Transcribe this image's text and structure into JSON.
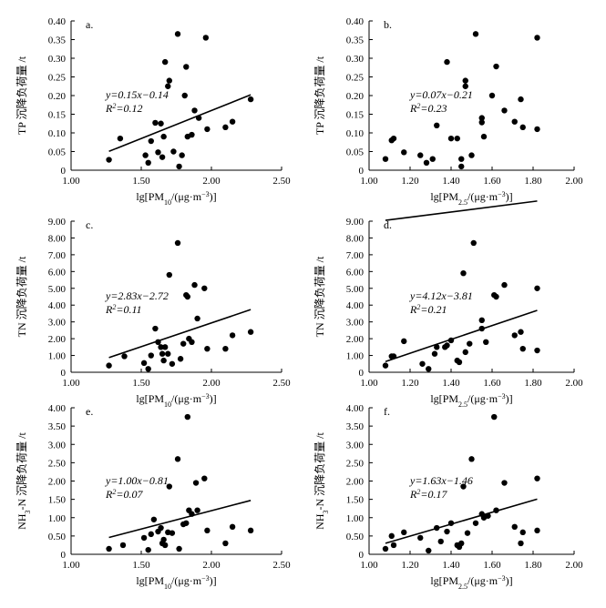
{
  "chart_data": [
    {
      "id": "a",
      "type": "scatter",
      "panel_label": "a.",
      "xlabel": "lg[PM10/(μg·m⁻³)]",
      "ylabel": "TP 沉降负荷量 /t",
      "xlim": [
        1.0,
        2.5
      ],
      "ylim": [
        0,
        0.4
      ],
      "x_ticks": [
        "1.00",
        "1.50",
        "2.00",
        "2.50"
      ],
      "y_ticks": [
        "0",
        "0.05",
        "0.10",
        "0.15",
        "0.20",
        "0.25",
        "0.30",
        "0.35",
        "0.40"
      ],
      "equation": "y=0.15x−0.14",
      "r2": "R²=0.12",
      "fit": {
        "slope": 0.15,
        "intercept": -0.14
      },
      "fit_x": [
        1.27,
        2.28
      ],
      "points": [
        [
          1.27,
          0.028
        ],
        [
          1.35,
          0.085
        ],
        [
          1.53,
          0.04
        ],
        [
          1.55,
          0.02
        ],
        [
          1.57,
          0.078
        ],
        [
          1.6,
          0.127
        ],
        [
          1.62,
          0.048
        ],
        [
          1.64,
          0.125
        ],
        [
          1.65,
          0.035
        ],
        [
          1.66,
          0.09
        ],
        [
          1.67,
          0.29
        ],
        [
          1.69,
          0.225
        ],
        [
          1.7,
          0.24
        ],
        [
          1.73,
          0.05
        ],
        [
          1.76,
          0.365
        ],
        [
          1.77,
          0.01
        ],
        [
          1.79,
          0.04
        ],
        [
          1.81,
          0.2
        ],
        [
          1.82,
          0.277
        ],
        [
          1.83,
          0.09
        ],
        [
          1.86,
          0.095
        ],
        [
          1.88,
          0.16
        ],
        [
          1.91,
          0.14
        ],
        [
          1.96,
          0.355
        ],
        [
          1.97,
          0.11
        ],
        [
          2.1,
          0.115
        ],
        [
          2.15,
          0.13
        ],
        [
          2.28,
          0.19
        ]
      ]
    },
    {
      "id": "b",
      "type": "scatter",
      "panel_label": "b.",
      "xlabel": "lg[PM2.5/(μg·m⁻³)]",
      "ylabel": "TP 沉降负荷量 /t",
      "xlim": [
        1.0,
        2.0
      ],
      "ylim": [
        0,
        0.4
      ],
      "x_ticks": [
        "1.00",
        "1.20",
        "1.40",
        "1.60",
        "1.80",
        "2.00"
      ],
      "y_ticks": [
        "0",
        "0.05",
        "0.10",
        "0.15",
        "0.20",
        "0.25",
        "0.30",
        "0.35",
        "0.40"
      ],
      "equation": "y=0.07x−0.21",
      "r2": "R²=0.23",
      "fit": {
        "slope": 0.07,
        "intercept": -0.21
      },
      "fit_x": [
        1.08,
        1.82
      ],
      "points": [
        [
          1.08,
          0.03
        ],
        [
          1.11,
          0.08
        ],
        [
          1.12,
          0.085
        ],
        [
          1.17,
          0.048
        ],
        [
          1.25,
          0.04
        ],
        [
          1.28,
          0.02
        ],
        [
          1.31,
          0.03
        ],
        [
          1.33,
          0.12
        ],
        [
          1.38,
          0.29
        ],
        [
          1.4,
          0.085
        ],
        [
          1.43,
          0.085
        ],
        [
          1.45,
          0.01
        ],
        [
          1.45,
          0.03
        ],
        [
          1.47,
          0.225
        ],
        [
          1.47,
          0.24
        ],
        [
          1.5,
          0.04
        ],
        [
          1.52,
          0.365
        ],
        [
          1.55,
          0.128
        ],
        [
          1.55,
          0.14
        ],
        [
          1.56,
          0.09
        ],
        [
          1.6,
          0.2
        ],
        [
          1.62,
          0.278
        ],
        [
          1.66,
          0.16
        ],
        [
          1.71,
          0.13
        ],
        [
          1.74,
          0.19
        ],
        [
          1.75,
          0.115
        ],
        [
          1.82,
          0.355
        ],
        [
          1.82,
          0.11
        ]
      ]
    },
    {
      "id": "c",
      "type": "scatter",
      "panel_label": "c.",
      "xlabel": "lg[PM10/(μg·m⁻³)]",
      "ylabel": "TN 沉降负荷量 /t",
      "xlim": [
        1.0,
        2.5
      ],
      "ylim": [
        0,
        9
      ],
      "x_ticks": [
        "1.00",
        "1.50",
        "2.00",
        "2.50"
      ],
      "y_ticks": [
        "0",
        "1.00",
        "2.00",
        "3.00",
        "4.00",
        "5.00",
        "6.00",
        "7.00",
        "8.00",
        "9.00"
      ],
      "equation": "y=2.83x−2.72",
      "r2": "R²=0.11",
      "fit": {
        "slope": 2.83,
        "intercept": -2.72
      },
      "fit_x": [
        1.27,
        2.28
      ],
      "points": [
        [
          1.27,
          0.4
        ],
        [
          1.38,
          0.95
        ],
        [
          1.52,
          0.55
        ],
        [
          1.55,
          0.2
        ],
        [
          1.57,
          1.0
        ],
        [
          1.6,
          2.6
        ],
        [
          1.62,
          1.8
        ],
        [
          1.64,
          1.5
        ],
        [
          1.65,
          1.1
        ],
        [
          1.66,
          0.7
        ],
        [
          1.67,
          1.5
        ],
        [
          1.69,
          1.1
        ],
        [
          1.7,
          5.8
        ],
        [
          1.72,
          0.5
        ],
        [
          1.76,
          7.7
        ],
        [
          1.78,
          0.8
        ],
        [
          1.8,
          1.7
        ],
        [
          1.82,
          4.6
        ],
        [
          1.83,
          4.5
        ],
        [
          1.84,
          2.0
        ],
        [
          1.86,
          1.8
        ],
        [
          1.88,
          5.2
        ],
        [
          1.9,
          3.2
        ],
        [
          1.95,
          5.0
        ],
        [
          1.97,
          1.4
        ],
        [
          2.1,
          1.4
        ],
        [
          2.15,
          2.2
        ],
        [
          2.28,
          2.4
        ]
      ]
    },
    {
      "id": "d",
      "type": "scatter",
      "panel_label": "d.",
      "xlabel": "lg[PM2.5/(μg·m⁻³)]",
      "ylabel": "TN 沉降负荷量 /t",
      "xlim": [
        1.0,
        2.0
      ],
      "ylim": [
        0,
        9
      ],
      "x_ticks": [
        "1.00",
        "1.20",
        "1.40",
        "1.60",
        "1.80",
        "2.00"
      ],
      "y_ticks": [
        "0",
        "1.00",
        "2.00",
        "3.00",
        "4.00",
        "5.00",
        "6.00",
        "7.00",
        "8.00",
        "9.00"
      ],
      "equation": "y=4.12x−3.81",
      "r2": "R²=0.21",
      "fit": {
        "slope": 4.12,
        "intercept": -3.81
      },
      "fit_x": [
        1.08,
        1.82
      ],
      "points": [
        [
          1.08,
          0.4
        ],
        [
          1.11,
          0.95
        ],
        [
          1.12,
          0.95
        ],
        [
          1.17,
          1.85
        ],
        [
          1.26,
          0.5
        ],
        [
          1.29,
          0.2
        ],
        [
          1.32,
          1.1
        ],
        [
          1.33,
          1.5
        ],
        [
          1.37,
          1.5
        ],
        [
          1.38,
          1.6
        ],
        [
          1.4,
          1.9
        ],
        [
          1.43,
          0.7
        ],
        [
          1.44,
          0.6
        ],
        [
          1.46,
          5.9
        ],
        [
          1.47,
          1.2
        ],
        [
          1.49,
          1.7
        ],
        [
          1.51,
          7.7
        ],
        [
          1.55,
          3.1
        ],
        [
          1.55,
          2.6
        ],
        [
          1.57,
          1.8
        ],
        [
          1.61,
          4.6
        ],
        [
          1.62,
          4.5
        ],
        [
          1.66,
          5.2
        ],
        [
          1.71,
          2.2
        ],
        [
          1.74,
          2.4
        ],
        [
          1.75,
          1.4
        ],
        [
          1.82,
          5.0
        ],
        [
          1.82,
          1.3
        ]
      ]
    },
    {
      "id": "e",
      "type": "scatter",
      "panel_label": "e.",
      "xlabel": "lg[PM10/(μg·m⁻³)]",
      "ylabel": "NH3-N 沉降负荷量 /t",
      "xlim": [
        1.0,
        2.5
      ],
      "ylim": [
        0,
        4
      ],
      "x_ticks": [
        "1.00",
        "1.50",
        "2.00",
        "2.50"
      ],
      "y_ticks": [
        "0",
        "0.50",
        "1.00",
        "1.50",
        "2.00",
        "2.50",
        "3.00",
        "3.50",
        "4.00"
      ],
      "equation": "y=1.00x−0.81",
      "r2": "R²=0.07",
      "fit": {
        "slope": 1.0,
        "intercept": -0.81
      },
      "fit_x": [
        1.27,
        2.28
      ],
      "points": [
        [
          1.27,
          0.15
        ],
        [
          1.37,
          0.25
        ],
        [
          1.52,
          0.45
        ],
        [
          1.55,
          0.12
        ],
        [
          1.57,
          0.55
        ],
        [
          1.59,
          0.95
        ],
        [
          1.62,
          0.62
        ],
        [
          1.64,
          0.72
        ],
        [
          1.65,
          0.3
        ],
        [
          1.66,
          0.4
        ],
        [
          1.67,
          0.25
        ],
        [
          1.69,
          0.6
        ],
        [
          1.7,
          1.85
        ],
        [
          1.72,
          0.58
        ],
        [
          1.76,
          2.6
        ],
        [
          1.77,
          0.15
        ],
        [
          1.8,
          0.82
        ],
        [
          1.82,
          0.85
        ],
        [
          1.83,
          3.75
        ],
        [
          1.84,
          1.2
        ],
        [
          1.86,
          1.1
        ],
        [
          1.89,
          1.95
        ],
        [
          1.9,
          1.2
        ],
        [
          1.95,
          2.07
        ],
        [
          1.97,
          0.65
        ],
        [
          2.1,
          0.3
        ],
        [
          2.15,
          0.75
        ],
        [
          2.28,
          0.65
        ]
      ]
    },
    {
      "id": "f",
      "type": "scatter",
      "panel_label": "f.",
      "xlabel": "lg[PM2.5/(μg·m⁻³)]",
      "ylabel": "NH3-N 沉降负荷量 /t",
      "xlim": [
        1.0,
        2.0
      ],
      "ylim": [
        0,
        4
      ],
      "x_ticks": [
        "1.00",
        "1.20",
        "1.40",
        "1.60",
        "1.80",
        "2.00"
      ],
      "y_ticks": [
        "0",
        "0.50",
        "1.00",
        "1.50",
        "2.00",
        "2.50",
        "3.00",
        "3.50",
        "4.00"
      ],
      "equation": "y=1.63x−1.46",
      "r2": "R²=0.17",
      "fit": {
        "slope": 1.63,
        "intercept": -1.46
      },
      "fit_x": [
        1.08,
        1.82
      ],
      "points": [
        [
          1.08,
          0.15
        ],
        [
          1.11,
          0.5
        ],
        [
          1.12,
          0.25
        ],
        [
          1.17,
          0.6
        ],
        [
          1.25,
          0.45
        ],
        [
          1.29,
          0.1
        ],
        [
          1.33,
          0.72
        ],
        [
          1.35,
          0.35
        ],
        [
          1.38,
          0.62
        ],
        [
          1.4,
          0.85
        ],
        [
          1.43,
          0.25
        ],
        [
          1.44,
          0.2
        ],
        [
          1.45,
          0.3
        ],
        [
          1.46,
          1.85
        ],
        [
          1.48,
          0.58
        ],
        [
          1.5,
          2.6
        ],
        [
          1.52,
          0.85
        ],
        [
          1.55,
          1.1
        ],
        [
          1.56,
          1.0
        ],
        [
          1.58,
          1.05
        ],
        [
          1.61,
          3.75
        ],
        [
          1.62,
          1.2
        ],
        [
          1.66,
          1.95
        ],
        [
          1.71,
          0.75
        ],
        [
          1.74,
          0.3
        ],
        [
          1.75,
          0.6
        ],
        [
          1.82,
          2.07
        ],
        [
          1.82,
          0.65
        ]
      ]
    }
  ]
}
